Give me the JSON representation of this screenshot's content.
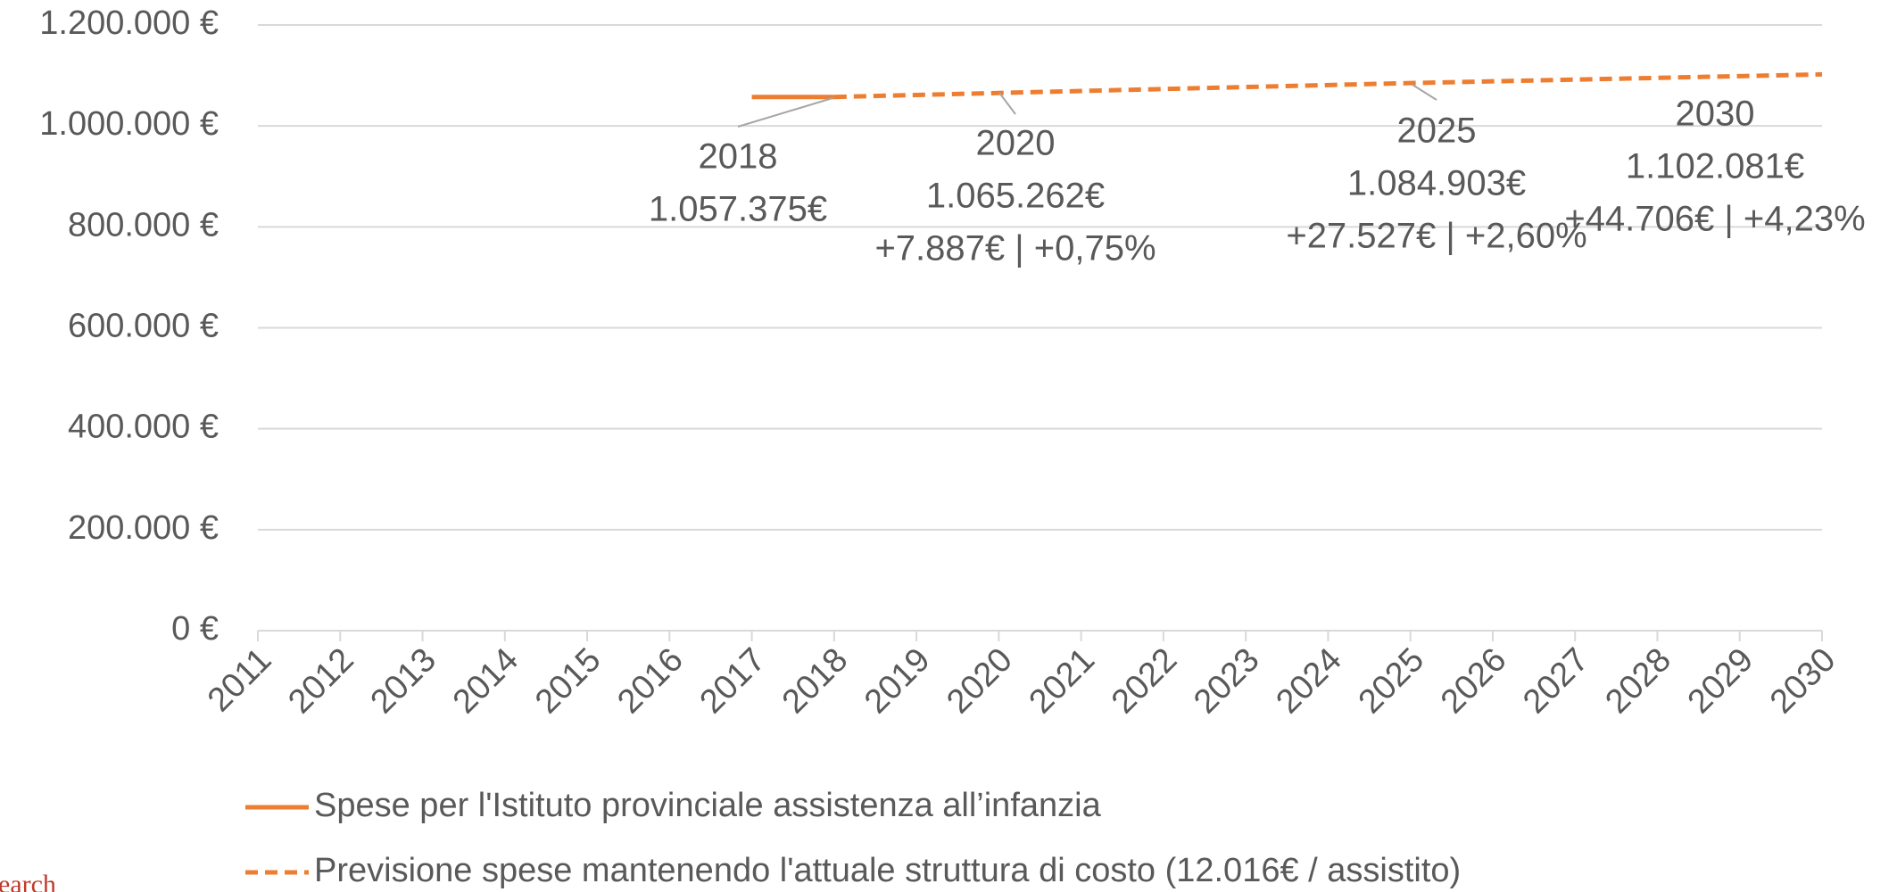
{
  "chart_data": {
    "type": "line",
    "categories": [
      "2011",
      "2012",
      "2013",
      "2014",
      "2015",
      "2016",
      "2017",
      "2018",
      "2019",
      "2020",
      "2021",
      "2022",
      "2023",
      "2024",
      "2025",
      "2026",
      "2027",
      "2028",
      "2029",
      "2030"
    ],
    "series": [
      {
        "name": "Spese per l'Istituto provinciale assistenza all’infanzia",
        "color": "#ED7D31",
        "dash": false,
        "values": [
          null,
          null,
          null,
          null,
          null,
          null,
          1057375,
          1057375,
          null,
          null,
          null,
          null,
          null,
          null,
          null,
          null,
          null,
          null,
          null,
          null
        ]
      },
      {
        "name": "Previsione spese mantenendo l'attuale struttura di costo (12.016€ / assistito)",
        "color": "#ED7D31",
        "dash": true,
        "values": [
          null,
          null,
          null,
          null,
          null,
          null,
          null,
          1057375,
          1061319,
          1065262,
          1069190,
          1073118,
          1077047,
          1080975,
          1084903,
          1088339,
          1091774,
          1095210,
          1098646,
          1102081
        ]
      }
    ],
    "ylim": [
      0,
      1200000
    ],
    "yticks": [
      {
        "value": 0,
        "label": "0 €"
      },
      {
        "value": 200000,
        "label": "200.000 €"
      },
      {
        "value": 400000,
        "label": "400.000 €"
      },
      {
        "value": 600000,
        "label": "600.000 €"
      },
      {
        "value": 800000,
        "label": "800.000 €"
      },
      {
        "value": 1000000,
        "label": "1.000.000 €"
      },
      {
        "value": 1200000,
        "label": "1.200.000 €"
      }
    ],
    "grid": true,
    "annotations": [
      {
        "lines": [
          "2018",
          "1.057.375€"
        ]
      },
      {
        "lines": [
          "2020",
          "1.065.262€",
          "+7.887€ | +0,75%"
        ]
      },
      {
        "lines": [
          "2025",
          "1.084.903€",
          "+27.527€ | +2,60%"
        ]
      },
      {
        "lines": [
          "2030",
          "1.102.081€",
          "+44.706€ | +4,23%"
        ]
      }
    ],
    "source_fragment": "earch"
  }
}
